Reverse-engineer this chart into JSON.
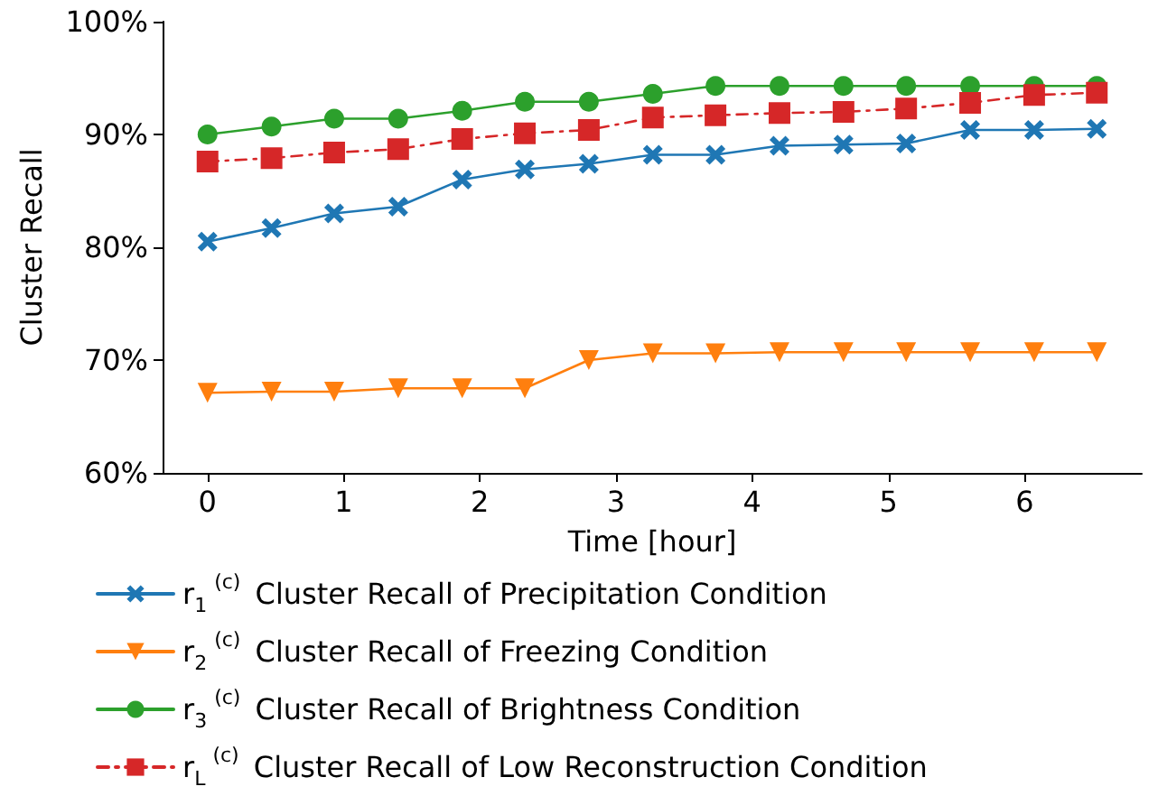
{
  "chart_data": {
    "type": "line",
    "xlabel": "Time [hour]",
    "ylabel": "Cluster Recall",
    "x": [
      0,
      0.47,
      0.93,
      1.4,
      1.87,
      2.33,
      2.8,
      3.27,
      3.73,
      4.2,
      4.67,
      5.13,
      5.6,
      6.07,
      6.53
    ],
    "series": [
      {
        "name": "r$_{1}$$^{(c)}$ Cluster Recall of Precipitation Condition",
        "color": "#1f77b4",
        "marker": "cross",
        "line_style": "solid",
        "values": [
          80.5,
          81.7,
          83.0,
          83.6,
          86.0,
          86.9,
          87.4,
          88.2,
          88.2,
          89.0,
          89.1,
          89.2,
          90.4,
          90.4,
          90.5
        ]
      },
      {
        "name": "r$_{2}$$^{(c)}$ Cluster Recall of Freezing Condition",
        "color": "#ff7f0e",
        "marker": "triangle",
        "line_style": "solid",
        "values": [
          67.1,
          67.2,
          67.2,
          67.5,
          67.5,
          67.5,
          70.0,
          70.6,
          70.6,
          70.7,
          70.7,
          70.7,
          70.7,
          70.7,
          70.7
        ]
      },
      {
        "name": "r$_{3}$$^{(c)}$ Cluster Recall of Brightness Condition",
        "color": "#2ca02c",
        "marker": "circle",
        "line_style": "solid",
        "values": [
          90.0,
          90.7,
          91.4,
          91.4,
          92.1,
          92.9,
          92.9,
          93.6,
          94.3,
          94.3,
          94.3,
          94.3,
          94.3,
          94.3,
          94.3
        ]
      },
      {
        "name": "r$_{L}$$^{(c)}$ Cluster Recall of Low Reconstruction Condition",
        "color": "#d62728",
        "marker": "square",
        "line_style": "dashed",
        "values": [
          87.6,
          87.9,
          88.4,
          88.7,
          89.6,
          90.1,
          90.4,
          91.5,
          91.7,
          91.9,
          92.0,
          92.3,
          92.8,
          93.5,
          93.7
        ]
      }
    ],
    "xlim": [
      -0.33,
      6.86
    ],
    "xticks": [
      0,
      1,
      2,
      3,
      4,
      5,
      6
    ],
    "ylim": [
      60,
      100
    ],
    "yticks": [
      {
        "value": 60,
        "label": "60%"
      },
      {
        "value": 70,
        "label": "70%"
      },
      {
        "value": 80,
        "label": "80%"
      },
      {
        "value": 90,
        "label": "90%"
      },
      {
        "value": 100,
        "label": "100%"
      }
    ],
    "grid": false,
    "legend": "bottom"
  }
}
